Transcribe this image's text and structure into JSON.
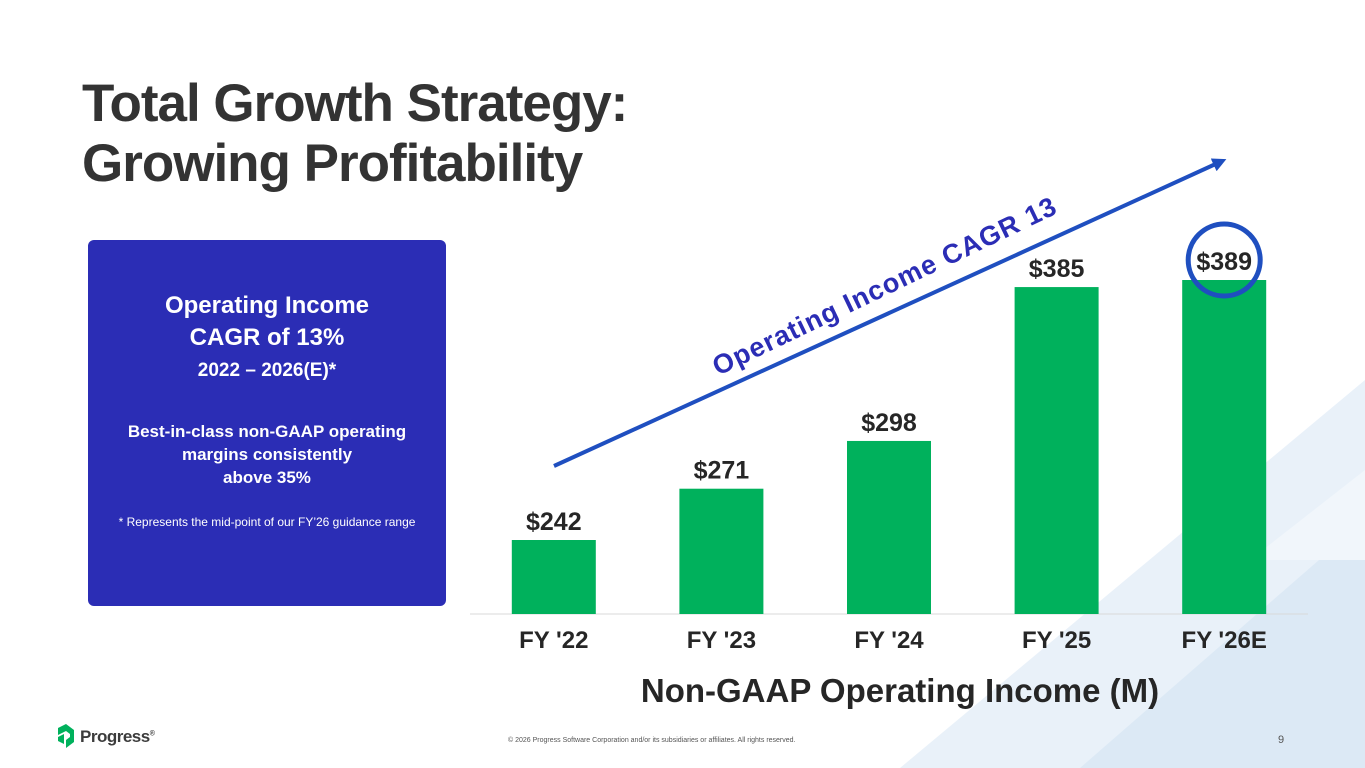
{
  "slide": {
    "title_line1": "Total Growth Strategy:",
    "title_line2": "Growing Profitability",
    "footer": "© 2026 Progress Software Corporation and/or its subsidiaries or affiliates. All rights reserved.",
    "page_number": "9",
    "logo_text": "Progress",
    "logo_mark": "®"
  },
  "info_box": {
    "heading_line1": "Operating Income",
    "heading_line2": "CAGR of 13%",
    "range": "2022 – 2026(E)*",
    "body_line1": "Best-in-class non-GAAP operating",
    "body_line2": "margins consistently",
    "body_line3": "above 35%",
    "note": "* Represents the mid-point of our FY’26 guidance range"
  },
  "colors": {
    "bar": "#00b15c",
    "box": "#2b2db5",
    "arrow": "#1f4fc0",
    "circle": "#1f4fc0",
    "title": "#333333",
    "logo": "#00b15c"
  },
  "chart_data": {
    "type": "bar",
    "categories": [
      "FY '22",
      "FY '23",
      "FY '24",
      "FY '25",
      "FY '26E"
    ],
    "values": [
      242,
      271,
      298,
      385,
      389
    ],
    "data_labels": [
      "$242",
      "$271",
      "$298",
      "$385",
      "$389"
    ],
    "xlabel": "Non-GAAP Operating Income (M)",
    "ylim": [
      0,
      420
    ],
    "highlight_index": 4,
    "trend_annotation": "Operating Income CAGR 13%",
    "grid": false
  }
}
